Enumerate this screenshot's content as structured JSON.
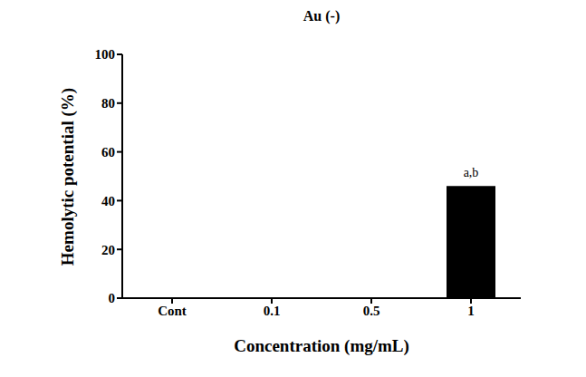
{
  "chart_data": {
    "type": "bar",
    "title": "Au (-)",
    "x_label": "Concentration (mg/mL)",
    "y_label": "Hemolytic potential (%)",
    "categories": [
      "Cont",
      "0.1",
      "0.5",
      "1"
    ],
    "values": [
      0,
      0,
      0,
      46
    ],
    "annotations": [
      null,
      null,
      null,
      "a,b"
    ],
    "color": "#000000",
    "ylim": [
      0,
      100
    ],
    "yticks": [
      0,
      20,
      40,
      60,
      80,
      100
    ],
    "grid": false
  }
}
